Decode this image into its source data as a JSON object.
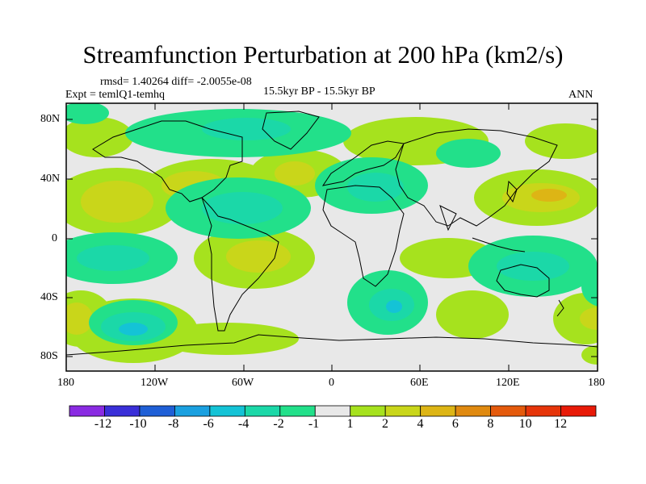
{
  "header": {
    "title": "Streamfunction Perturbation at 200 hPa (km2/s)",
    "stats": "rmsd= 1.40264 diff= -2.0055e-08",
    "experiment": "Expt = temlQ1-temhq",
    "period": "15.5kyr BP - 15.5kyr BP",
    "season": "ANN"
  },
  "map": {
    "lat_ticks": [
      "80N",
      "40N",
      "0",
      "40S",
      "80S"
    ],
    "lon_ticks": [
      "180",
      "120W",
      "60W",
      "0",
      "60E",
      "120E",
      "180"
    ]
  },
  "colorbar": {
    "labels": [
      "-12",
      "-10",
      "-8",
      "-6",
      "-4",
      "-2",
      "-1",
      "1",
      "2",
      "4",
      "6",
      "8",
      "10",
      "12"
    ],
    "colors": [
      "#8a2be2",
      "#3a2fd8",
      "#1f5fd6",
      "#1aa0e0",
      "#14c3d6",
      "#1bd8a8",
      "#22e08a",
      "#e8e8e8",
      "#a6e21e",
      "#c9d61a",
      "#ddb515",
      "#e08a10",
      "#e45a0c",
      "#e6350a",
      "#e81a08"
    ]
  }
}
